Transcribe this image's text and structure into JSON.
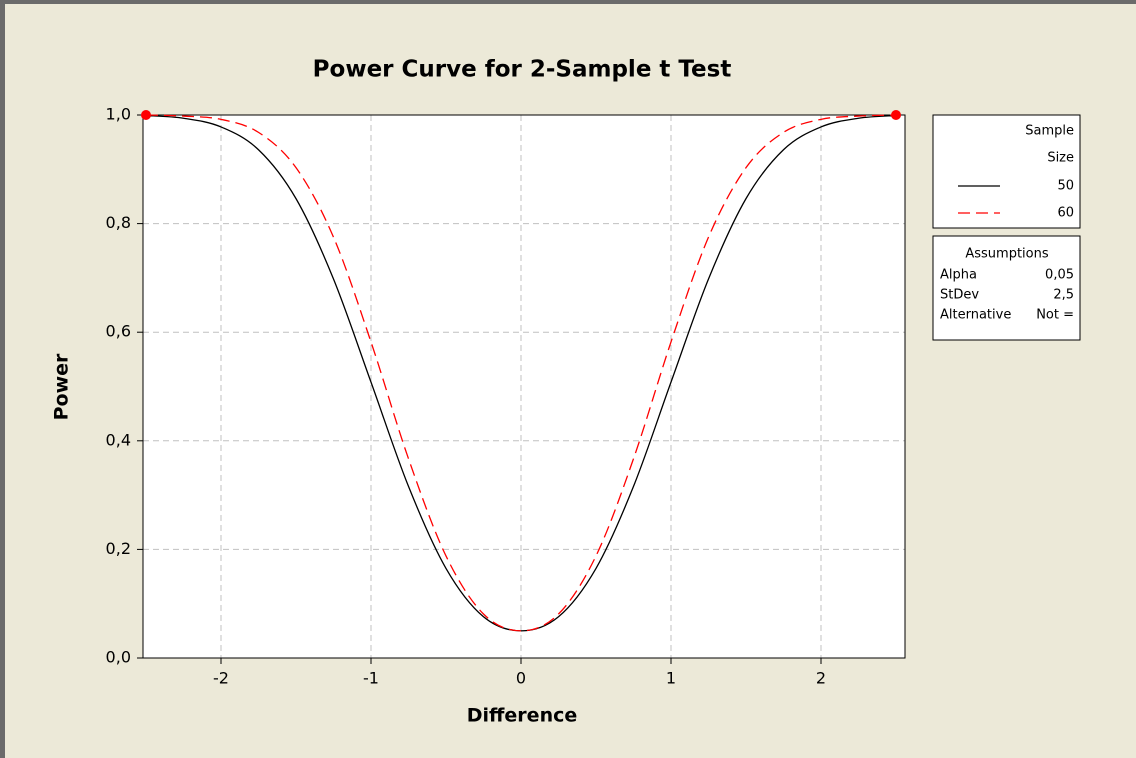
{
  "chart_data": {
    "type": "line",
    "title": "Power Curve for 2-Sample t Test",
    "xlabel": "Difference",
    "ylabel": "Power",
    "x": [
      -2.5,
      -2.25,
      -2.0,
      -1.75,
      -1.5,
      -1.25,
      -1.0,
      -0.75,
      -0.5,
      -0.25,
      0,
      0.25,
      0.5,
      0.75,
      1.0,
      1.25,
      1.5,
      1.75,
      2.0,
      2.25,
      2.5
    ],
    "series": [
      {
        "name": "50",
        "color": "#000000",
        "dash": false,
        "values": [
          0.999,
          0.994,
          0.978,
          0.936,
          0.846,
          0.698,
          0.508,
          0.316,
          0.165,
          0.076,
          0.05,
          0.076,
          0.165,
          0.316,
          0.508,
          0.698,
          0.846,
          0.936,
          0.978,
          0.994,
          0.999
        ]
      },
      {
        "name": "60",
        "color": "#ff0000",
        "dash": true,
        "values": [
          1.0,
          0.998,
          0.992,
          0.968,
          0.903,
          0.775,
          0.582,
          0.367,
          0.188,
          0.081,
          0.05,
          0.081,
          0.188,
          0.367,
          0.582,
          0.775,
          0.903,
          0.968,
          0.992,
          0.998,
          1.0
        ]
      }
    ],
    "xlim": [
      -2.52,
      2.56
    ],
    "ylim": [
      0,
      1
    ],
    "xticks": [
      -2,
      -1,
      0,
      1,
      2
    ],
    "yticks": [
      {
        "value": 0,
        "label": "0,0"
      },
      {
        "value": 0.2,
        "label": "0,2"
      },
      {
        "value": 0.4,
        "label": "0,4"
      },
      {
        "value": 0.6,
        "label": "0,6"
      },
      {
        "value": 0.8,
        "label": "0,8"
      },
      {
        "value": 1,
        "label": "1,0"
      }
    ],
    "grid": true,
    "legend_title": [
      "Sample",
      "Size"
    ],
    "assumptions": {
      "title": "Assumptions",
      "rows": [
        [
          "Alpha",
          "0,05"
        ],
        [
          "StDev",
          "2,5"
        ],
        [
          "Alternative",
          "Not ="
        ]
      ]
    }
  }
}
